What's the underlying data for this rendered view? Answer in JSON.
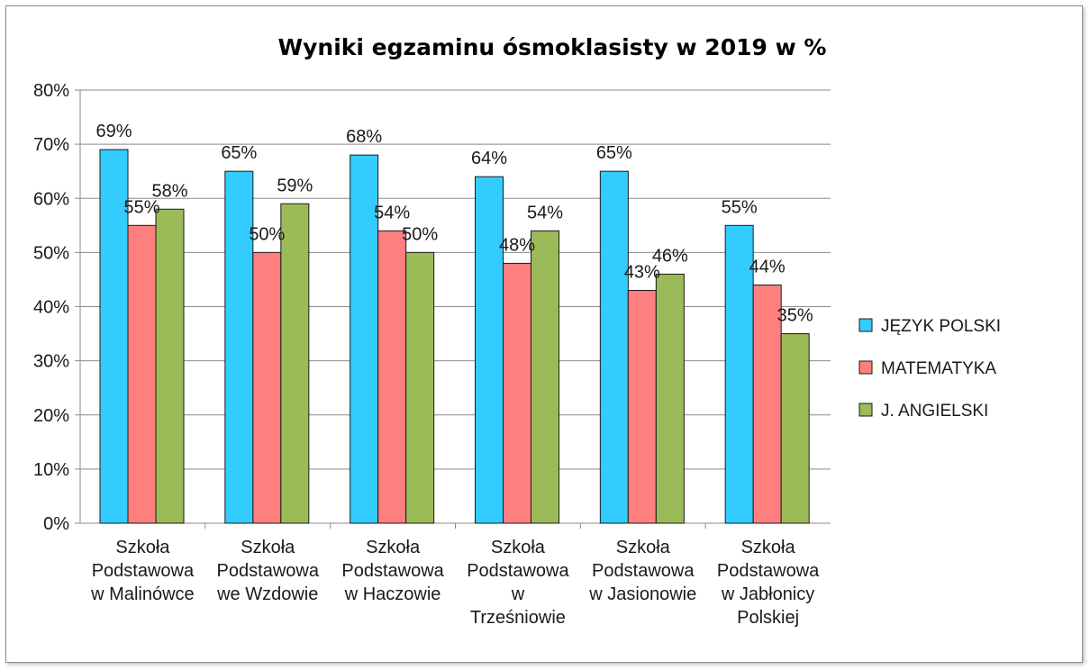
{
  "chart_data": {
    "type": "bar",
    "title": "Wyniki egzaminu ósmoklasisty w 2019  w %",
    "xlabel": "",
    "ylabel": "",
    "ylim": [
      0,
      80
    ],
    "yticks": [
      "0%",
      "10%",
      "20%",
      "30%",
      "40%",
      "50%",
      "60%",
      "70%",
      "80%"
    ],
    "grid": true,
    "legend_position": "right",
    "categories": [
      [
        "Szkoła",
        "Podstawowa",
        "w Malinówce"
      ],
      [
        "Szkoła",
        "Podstawowa",
        "we Wzdowie"
      ],
      [
        "Szkoła",
        "Podstawowa",
        "w Haczowie"
      ],
      [
        "Szkoła",
        "Podstawowa",
        "w",
        "Trześniowie"
      ],
      [
        "Szkoła",
        "Podstawowa",
        "w Jasionowie"
      ],
      [
        "Szkoła",
        "Podstawowa",
        "w Jabłonicy",
        "Polskiej"
      ]
    ],
    "series": [
      {
        "name": "JĘZYK POLSKI",
        "color": "#33ccff",
        "values": [
          69,
          65,
          68,
          64,
          65,
          55
        ],
        "labels": [
          "69%",
          "65%",
          "68%",
          "64%",
          "65%",
          "55%"
        ]
      },
      {
        "name": "MATEMATYKA",
        "color": "#ff7f7f",
        "values": [
          55,
          50,
          54,
          48,
          43,
          44
        ],
        "labels": [
          "55%",
          "50%",
          "54%",
          "48%",
          "43%",
          "44%"
        ]
      },
      {
        "name": "J. ANGIELSKI",
        "color": "#9bbb59",
        "values": [
          58,
          59,
          50,
          54,
          46,
          35
        ],
        "labels": [
          "58%",
          "59%",
          "50%",
          "54%",
          "46%",
          "35%"
        ]
      }
    ]
  }
}
